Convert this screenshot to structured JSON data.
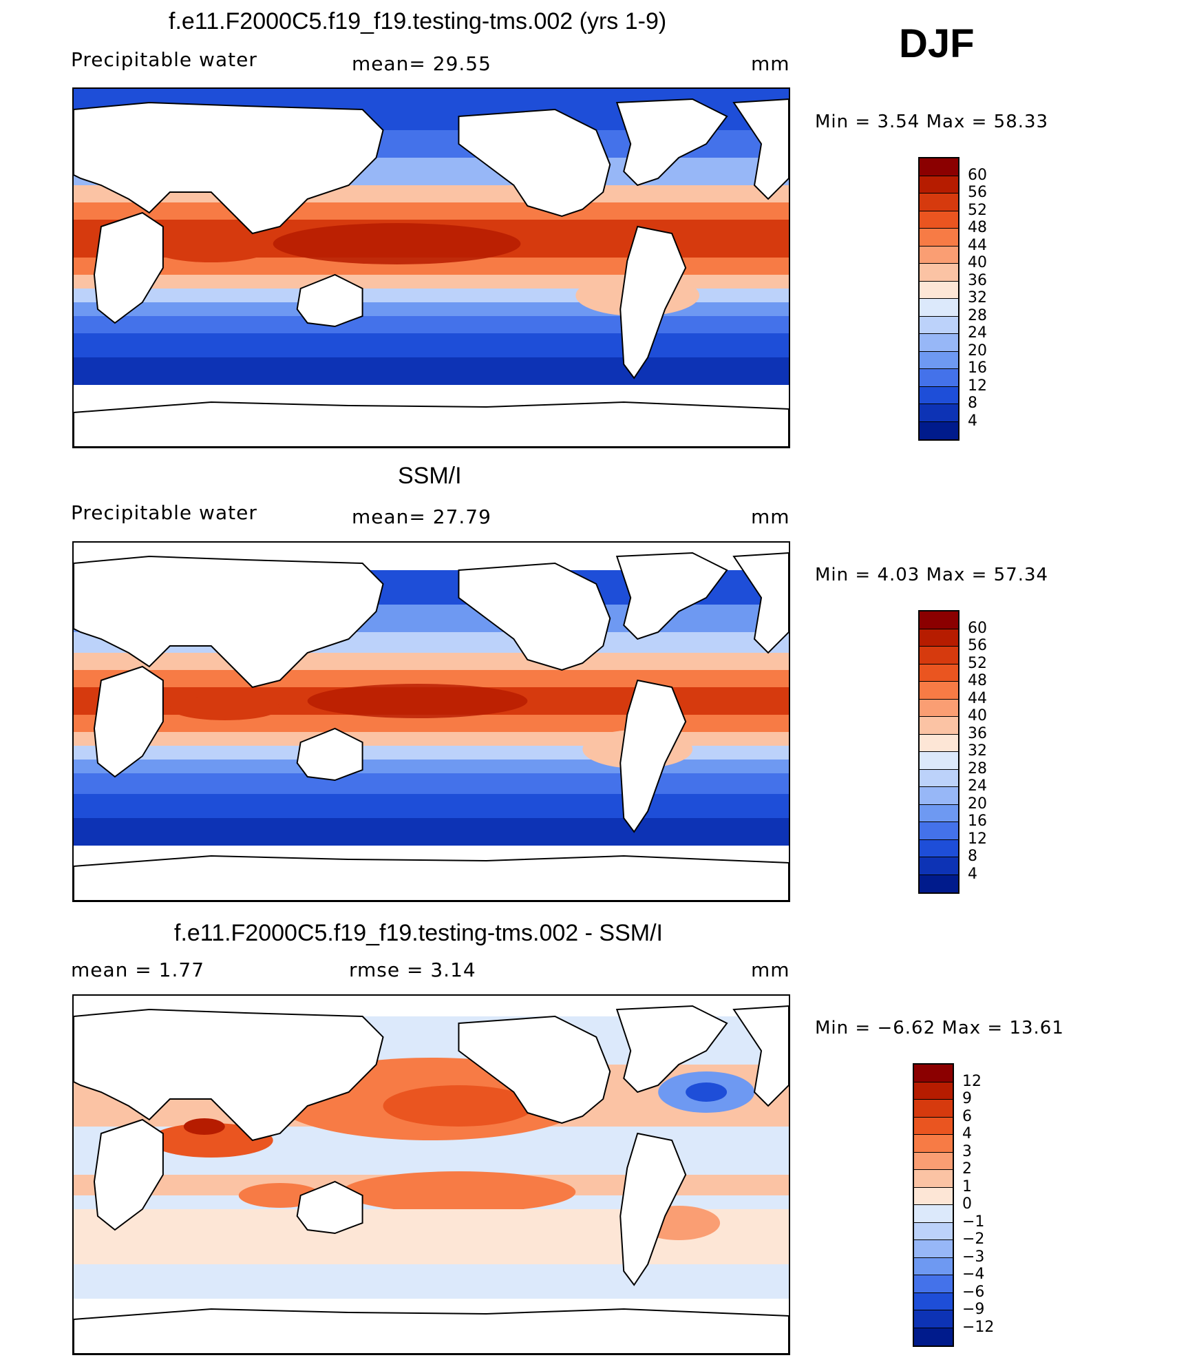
{
  "season": "DJF",
  "panels": [
    {
      "title": "f.e11.F2000C5.f19_f19.testing-tms.002 (yrs 1-9)",
      "left_label": "Precipitable  water",
      "center_label": "mean=   29.55",
      "units": "mm",
      "minmax": "Min  =      3.54  Max  =     58.33",
      "kind": "absolute"
    },
    {
      "title": "SSM/I",
      "left_label": "Precipitable  water",
      "center_label": "mean=   27.79",
      "units": "mm",
      "minmax": "Min  =      4.03  Max  =     57.34",
      "kind": "absolute"
    },
    {
      "title": "f.e11.F2000C5.f19_f19.testing-tms.002 - SSM/I",
      "left_label": "mean  =      1.77",
      "center_label": "rmse  =      3.14",
      "units": "mm",
      "minmax": "Min  =    −6.62  Max  =    13.61",
      "kind": "difference"
    }
  ],
  "colorbars": {
    "absolute": {
      "labels": [
        "60",
        "56",
        "52",
        "48",
        "44",
        "40",
        "36",
        "32",
        "28",
        "24",
        "20",
        "16",
        "12",
        "8",
        "4"
      ],
      "colors": [
        "#8b0000",
        "#b61c00",
        "#d63a0e",
        "#ea5520",
        "#f77b45",
        "#fa9e73",
        "#fbc3a4",
        "#fde6d6",
        "#dce9fb",
        "#bcd2fa",
        "#97b7f7",
        "#6e99f2",
        "#4472ea",
        "#1e4ed8",
        "#0d33b5",
        "#001b8c"
      ]
    },
    "difference": {
      "labels": [
        "12",
        "9",
        "6",
        "4",
        "3",
        "2",
        "1",
        "0",
        "−1",
        "−2",
        "−3",
        "−4",
        "−6",
        "−9",
        "−12"
      ],
      "colors": [
        "#8b0000",
        "#b61c00",
        "#d63a0e",
        "#ea5520",
        "#f77b45",
        "#fa9e73",
        "#fbc3a4",
        "#fde6d6",
        "#dce9fb",
        "#bcd2fa",
        "#97b7f7",
        "#6e99f2",
        "#4472ea",
        "#1e4ed8",
        "#0d33b5",
        "#001b8c"
      ]
    }
  }
}
